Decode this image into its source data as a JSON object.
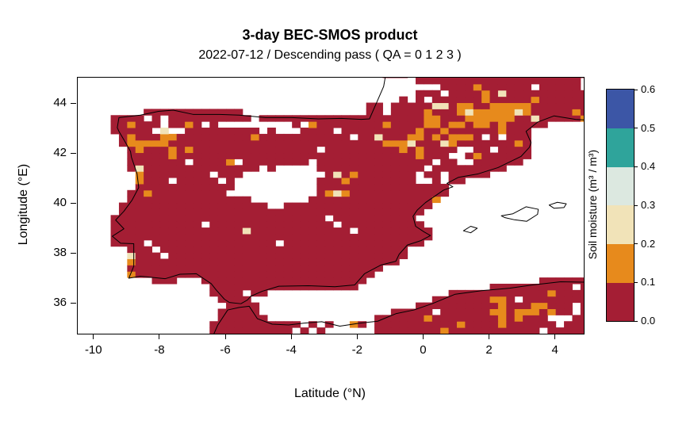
{
  "chart_data": {
    "type": "heatmap",
    "title": "3-day BEC-SMOS product",
    "subtitle": "2022-07-12 / Descending pass ( QA = 0 1 2 3 )",
    "xlabel": "Latitude (°N)",
    "ylabel": "Longitude (°E)",
    "xlim": [
      -10.5,
      4.85
    ],
    "ylim": [
      34.8,
      45.05
    ],
    "xticks": [
      -10,
      -8,
      -6,
      -4,
      -2,
      0,
      2,
      4
    ],
    "yticks": [
      36,
      38,
      40,
      42,
      44
    ],
    "grid": false,
    "colorbar": {
      "label": "Soil moisture (m³ / m³)",
      "position": "right",
      "range": [
        0.0,
        0.6
      ],
      "tick_labels": [
        "0.0",
        "0.1",
        "0.2",
        "0.3",
        "0.4",
        "0.5",
        "0.6"
      ],
      "levels": [
        {
          "range": [
            0.0,
            0.1
          ],
          "color": "#A41E34"
        },
        {
          "range": [
            0.1,
            0.2
          ],
          "color": "#E78A1C"
        },
        {
          "range": [
            0.2,
            0.3
          ],
          "color": "#F1E3B8"
        },
        {
          "range": [
            0.3,
            0.4
          ],
          "color": "#DCE8E0"
        },
        {
          "range": [
            0.4,
            0.5
          ],
          "color": "#2FA49B"
        },
        {
          "range": [
            0.5,
            0.6
          ],
          "color": "#3C56A6"
        }
      ]
    },
    "map": {
      "region": "Iberian Peninsula, southern France, Balearic Islands and North Africa coast",
      "sea_color": "#FFFFFF",
      "no_data_color": "#FFFFFF",
      "coastline_color": "#000000",
      "cell_size_deg": 0.25,
      "seed": 7,
      "base_probabilities": {
        "no_data": 0.1,
        "orange": 0.05,
        "cream": 0.004
      },
      "no_data_zones": [
        [
          -4.35,
          40.75,
          0.7,
          0.55,
          3.0
        ],
        [
          -5.2,
          40.9,
          0.5,
          0.35,
          0.8
        ],
        [
          -3.25,
          41.35,
          0.45,
          0.35,
          0.7
        ],
        [
          -7.7,
          43.0,
          0.8,
          0.45,
          0.5
        ],
        [
          -5.3,
          43.15,
          0.7,
          0.3,
          0.4
        ],
        [
          -4.1,
          43.15,
          0.9,
          0.35,
          0.45
        ],
        [
          -0.7,
          44.6,
          0.9,
          0.6,
          0.9
        ],
        [
          -1.05,
          43.85,
          0.45,
          0.3,
          0.4
        ],
        [
          -7.9,
          40.1,
          0.5,
          0.45,
          0.45
        ],
        [
          -3.3,
          35.0,
          1.7,
          0.55,
          0.5
        ],
        [
          4.0,
          35.3,
          0.8,
          0.5,
          0.35
        ],
        [
          2.3,
          42.7,
          0.5,
          0.35,
          0.4
        ],
        [
          1.2,
          41.9,
          0.5,
          0.35,
          0.35
        ],
        [
          0.4,
          41.0,
          0.45,
          0.35,
          0.3
        ]
      ],
      "moist_zones": [
        [
          -7.95,
          42.55,
          0.7,
          0.55,
          0.5
        ],
        [
          -8.55,
          40.9,
          0.4,
          1.3,
          0.45
        ],
        [
          -0.4,
          42.45,
          1.5,
          0.65,
          0.5
        ],
        [
          1.9,
          43.7,
          1.6,
          0.9,
          0.45
        ],
        [
          -2.55,
          40.55,
          0.6,
          0.6,
          0.45
        ],
        [
          2.9,
          35.7,
          1.3,
          0.6,
          0.5
        ],
        [
          0.3,
          35.2,
          0.8,
          0.4,
          0.3
        ],
        [
          -8.8,
          37.6,
          0.35,
          0.5,
          0.3
        ],
        [
          3.9,
          36.6,
          0.6,
          0.4,
          0.35
        ]
      ],
      "coastlines": {
        "mainland": [
          [
            -8.87,
            41.86
          ],
          [
            -8.7,
            41.2
          ],
          [
            -8.65,
            40.65
          ],
          [
            -8.85,
            40.15
          ],
          [
            -9.1,
            39.7
          ],
          [
            -9.35,
            39.35
          ],
          [
            -9.1,
            39.0
          ],
          [
            -9.45,
            38.7
          ],
          [
            -9.2,
            38.42
          ],
          [
            -8.8,
            38.4
          ],
          [
            -8.8,
            37.5
          ],
          [
            -8.95,
            37.02
          ],
          [
            -8.6,
            37.1
          ],
          [
            -7.85,
            37.0
          ],
          [
            -7.4,
            37.18
          ],
          [
            -6.9,
            37.2
          ],
          [
            -6.45,
            36.8
          ],
          [
            -6.3,
            36.55
          ],
          [
            -6.05,
            36.18
          ],
          [
            -5.9,
            36.05
          ],
          [
            -5.55,
            36.0
          ],
          [
            -5.35,
            36.15
          ],
          [
            -5.25,
            36.3
          ],
          [
            -4.9,
            36.5
          ],
          [
            -4.4,
            36.7
          ],
          [
            -3.5,
            36.72
          ],
          [
            -2.7,
            36.68
          ],
          [
            -2.1,
            36.75
          ],
          [
            -1.8,
            37.2
          ],
          [
            -1.3,
            37.55
          ],
          [
            -0.85,
            37.7
          ],
          [
            -0.75,
            37.98
          ],
          [
            -0.5,
            38.35
          ],
          [
            -0.1,
            38.52
          ],
          [
            0.2,
            38.73
          ],
          [
            0.0,
            38.88
          ],
          [
            -0.25,
            39.1
          ],
          [
            -0.33,
            39.5
          ],
          [
            -0.2,
            39.75
          ],
          [
            0.05,
            40.05
          ],
          [
            0.6,
            40.55
          ],
          [
            0.88,
            40.68
          ],
          [
            0.7,
            40.82
          ],
          [
            1.05,
            41.06
          ],
          [
            1.65,
            41.2
          ],
          [
            2.25,
            41.45
          ],
          [
            2.95,
            41.9
          ],
          [
            3.2,
            42.26
          ],
          [
            3.25,
            42.45
          ],
          [
            3.1,
            42.9
          ],
          [
            3.45,
            43.27
          ],
          [
            3.95,
            43.52
          ],
          [
            4.6,
            43.38
          ],
          [
            5.3,
            43.32
          ],
          [
            5.3,
            45.6
          ],
          [
            -1.1,
            45.6
          ],
          [
            -1.22,
            44.7
          ],
          [
            -1.45,
            44.0
          ],
          [
            -1.65,
            43.4
          ],
          [
            -1.9,
            43.38
          ],
          [
            -2.5,
            43.42
          ],
          [
            -3.2,
            43.4
          ],
          [
            -4.0,
            43.45
          ],
          [
            -4.8,
            43.45
          ],
          [
            -5.6,
            43.55
          ],
          [
            -6.2,
            43.58
          ],
          [
            -7.0,
            43.58
          ],
          [
            -7.6,
            43.75
          ],
          [
            -8.05,
            43.7
          ],
          [
            -8.6,
            43.55
          ],
          [
            -9.25,
            43.45
          ],
          [
            -9.3,
            43.05
          ],
          [
            -9.25,
            42.9
          ],
          [
            -9.05,
            42.45
          ],
          [
            -8.9,
            42.1
          ]
        ],
        "africa": [
          [
            -6.45,
            34.55
          ],
          [
            -6.25,
            35.15
          ],
          [
            -5.95,
            35.75
          ],
          [
            -5.6,
            35.85
          ],
          [
            -5.3,
            35.9
          ],
          [
            -5.05,
            35.4
          ],
          [
            -4.6,
            35.18
          ],
          [
            -4.1,
            35.15
          ],
          [
            -3.65,
            35.22
          ],
          [
            -3.1,
            35.28
          ],
          [
            -2.55,
            35.1
          ],
          [
            -1.95,
            35.22
          ],
          [
            -1.4,
            35.3
          ],
          [
            -0.85,
            35.6
          ],
          [
            -0.3,
            35.75
          ],
          [
            0.25,
            36.0
          ],
          [
            0.95,
            36.38
          ],
          [
            1.75,
            36.52
          ],
          [
            2.6,
            36.62
          ],
          [
            3.3,
            36.75
          ],
          [
            4.15,
            36.88
          ],
          [
            5.3,
            36.85
          ],
          [
            5.3,
            34.55
          ]
        ],
        "islands": [
          [
            [
              2.35,
              39.52
            ],
            [
              2.7,
              39.6
            ],
            [
              3.1,
              39.88
            ],
            [
              3.47,
              39.78
            ],
            [
              3.45,
              39.58
            ],
            [
              3.12,
              39.3
            ],
            [
              2.75,
              39.36
            ],
            [
              2.45,
              39.45
            ]
          ],
          [
            [
              3.8,
              39.95
            ],
            [
              4.05,
              40.06
            ],
            [
              4.32,
              40.0
            ],
            [
              4.25,
              39.85
            ],
            [
              3.95,
              39.82
            ]
          ],
          [
            [
              1.2,
              38.92
            ],
            [
              1.42,
              39.1
            ],
            [
              1.62,
              39.02
            ],
            [
              1.42,
              38.84
            ]
          ]
        ]
      }
    }
  }
}
